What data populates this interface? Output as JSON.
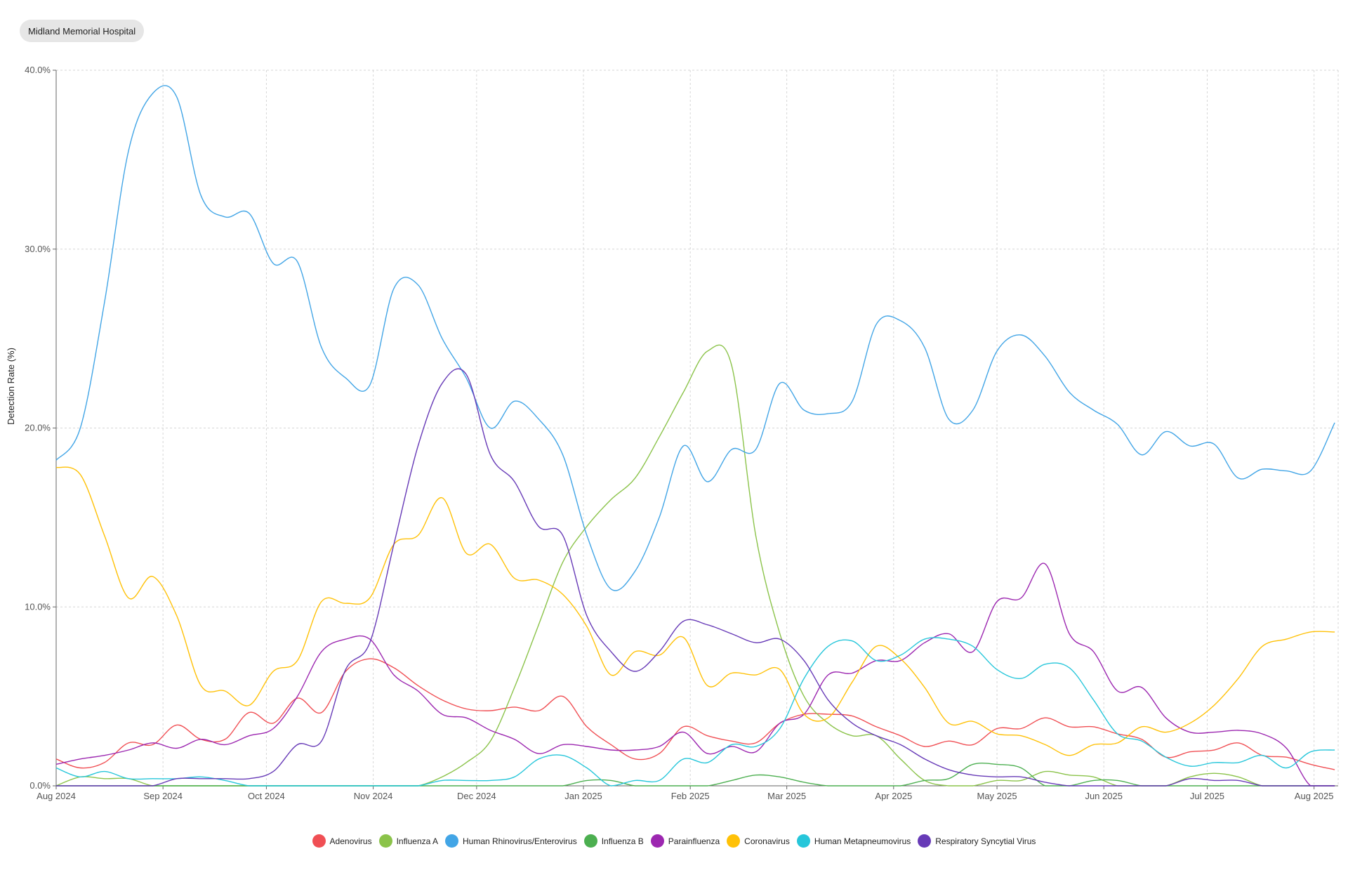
{
  "header": {
    "filter_label": "Midland Memorial Hospital"
  },
  "chart_data": {
    "type": "line",
    "ylabel": "Detection Rate (%)",
    "xlabel": "",
    "ylim": [
      0,
      40
    ],
    "yticks": [
      "0.0%",
      "10.0%",
      "20.0%",
      "30.0%",
      "40.0%"
    ],
    "xticks": [
      {
        "date": "2024-08-01",
        "label": "Aug 2024"
      },
      {
        "date": "2024-09-01",
        "label": "Sep 2024"
      },
      {
        "date": "2024-10-01",
        "label": "Oct 2024"
      },
      {
        "date": "2024-11-01",
        "label": "Nov 2024"
      },
      {
        "date": "2024-12-01",
        "label": "Dec 2024"
      },
      {
        "date": "2025-01-01",
        "label": "Jan 2025"
      },
      {
        "date": "2025-02-01",
        "label": "Feb 2025"
      },
      {
        "date": "2025-03-01",
        "label": "Mar 2025"
      },
      {
        "date": "2025-04-01",
        "label": "Apr 2025"
      },
      {
        "date": "2025-05-01",
        "label": "May 2025"
      },
      {
        "date": "2025-06-01",
        "label": "Jun 2025"
      },
      {
        "date": "2025-07-01",
        "label": "Jul 2025"
      },
      {
        "date": "2025-08-01",
        "label": "Aug 2025"
      }
    ],
    "xrange": [
      "2024-08-01",
      "2025-08-08"
    ],
    "grid": true,
    "legend_position": "bottom",
    "x": [
      "2024-08-01",
      "2024-08-08",
      "2024-08-15",
      "2024-08-22",
      "2024-08-29",
      "2024-09-05",
      "2024-09-12",
      "2024-09-19",
      "2024-09-26",
      "2024-10-03",
      "2024-10-10",
      "2024-10-17",
      "2024-10-24",
      "2024-10-31",
      "2024-11-07",
      "2024-11-14",
      "2024-11-21",
      "2024-11-28",
      "2024-12-05",
      "2024-12-12",
      "2024-12-19",
      "2024-12-26",
      "2025-01-02",
      "2025-01-09",
      "2025-01-16",
      "2025-01-23",
      "2025-01-30",
      "2025-02-06",
      "2025-02-13",
      "2025-02-20",
      "2025-02-27",
      "2025-03-06",
      "2025-03-13",
      "2025-03-20",
      "2025-03-27",
      "2025-04-03",
      "2025-04-10",
      "2025-04-17",
      "2025-04-24",
      "2025-05-01",
      "2025-05-08",
      "2025-05-15",
      "2025-05-22",
      "2025-05-29",
      "2025-06-05",
      "2025-06-12",
      "2025-06-19",
      "2025-06-26",
      "2025-07-03",
      "2025-07-10",
      "2025-07-17",
      "2025-07-24",
      "2025-07-31",
      "2025-08-07"
    ],
    "series": [
      {
        "name": "Adenovirus",
        "color": "#f04f54",
        "values": [
          1.5,
          1.0,
          1.3,
          2.4,
          2.3,
          3.4,
          2.6,
          2.6,
          4.1,
          3.5,
          4.9,
          4.1,
          6.4,
          7.1,
          6.6,
          5.6,
          4.8,
          4.3,
          4.2,
          4.4,
          4.2,
          5.0,
          3.3,
          2.3,
          1.5,
          1.8,
          3.3,
          2.8,
          2.5,
          2.4,
          3.5,
          4.0,
          4.0,
          3.9,
          3.3,
          2.8,
          2.2,
          2.5,
          2.3,
          3.2,
          3.2,
          3.8,
          3.3,
          3.3,
          2.9,
          2.6,
          1.6,
          1.9,
          2.0,
          2.4,
          1.7,
          1.6,
          1.2,
          0.9
        ]
      },
      {
        "name": "Influenza A",
        "color": "#8bc34a",
        "values": [
          0.0,
          0.5,
          0.4,
          0.4,
          0.0,
          0.0,
          0.0,
          0.0,
          0.0,
          0.0,
          0.0,
          0.0,
          0.0,
          0.0,
          0.0,
          0.0,
          0.5,
          1.3,
          2.5,
          5.5,
          9.0,
          12.5,
          14.5,
          16.0,
          17.2,
          19.5,
          22.0,
          24.3,
          23.5,
          14.0,
          8.5,
          5.0,
          3.5,
          2.8,
          2.8,
          1.5,
          0.3,
          0.0,
          0.0,
          0.3,
          0.3,
          0.8,
          0.6,
          0.5,
          0.0,
          0.0,
          0.0,
          0.5,
          0.7,
          0.5,
          0.0,
          0.0,
          0.0,
          0.0
        ]
      },
      {
        "name": "Human Rhinovirus/Enterovirus",
        "color": "#42a5e6",
        "values": [
          18.2,
          20.0,
          27.0,
          35.5,
          38.7,
          38.5,
          33.0,
          31.8,
          32.0,
          29.2,
          29.3,
          24.5,
          22.8,
          22.4,
          27.8,
          28.0,
          25.0,
          22.8,
          20.0,
          21.5,
          20.5,
          18.5,
          14.0,
          11.0,
          12.0,
          15.0,
          19.0,
          17.0,
          18.8,
          18.8,
          22.5,
          21.0,
          20.8,
          21.5,
          25.8,
          26.0,
          24.5,
          20.5,
          21.0,
          24.3,
          25.2,
          24.0,
          22.0,
          21.0,
          20.2,
          18.5,
          19.8,
          19.0,
          19.1,
          17.2,
          17.7,
          17.6,
          17.6,
          20.3
        ]
      },
      {
        "name": "Influenza B",
        "color": "#4caf50",
        "values": [
          0.0,
          0.0,
          0.0,
          0.0,
          0.0,
          0.0,
          0.0,
          0.0,
          0.0,
          0.0,
          0.0,
          0.0,
          0.0,
          0.0,
          0.0,
          0.0,
          0.0,
          0.0,
          0.0,
          0.0,
          0.0,
          0.0,
          0.3,
          0.3,
          0.0,
          0.0,
          0.0,
          0.0,
          0.3,
          0.6,
          0.5,
          0.2,
          0.0,
          0.0,
          0.0,
          0.0,
          0.3,
          0.4,
          1.2,
          1.2,
          1.0,
          0.0,
          0.0,
          0.3,
          0.3,
          0.0,
          0.0,
          0.0,
          0.0,
          0.0,
          0.0,
          0.0,
          0.0,
          0.0
        ]
      },
      {
        "name": "Parainfluenza",
        "color": "#9c27b0",
        "values": [
          1.2,
          1.5,
          1.7,
          2.0,
          2.4,
          2.1,
          2.6,
          2.3,
          2.8,
          3.2,
          5.0,
          7.5,
          8.2,
          8.2,
          6.2,
          5.3,
          4.0,
          3.8,
          3.1,
          2.6,
          1.8,
          2.3,
          2.2,
          2.0,
          2.0,
          2.2,
          3.0,
          1.8,
          2.2,
          1.9,
          3.5,
          4.0,
          6.2,
          6.3,
          7.0,
          7.0,
          8.0,
          8.5,
          7.5,
          10.3,
          10.5,
          12.4,
          8.5,
          7.5,
          5.3,
          5.5,
          3.8,
          3.0,
          3.0,
          3.1,
          2.9,
          2.1,
          0.0,
          0.0
        ]
      },
      {
        "name": "Coronavirus",
        "color": "#ffc107",
        "values": [
          17.8,
          17.4,
          14.0,
          10.5,
          11.7,
          9.5,
          5.6,
          5.3,
          4.5,
          6.4,
          7.0,
          10.3,
          10.2,
          10.5,
          13.5,
          14.0,
          16.1,
          13.0,
          13.5,
          11.6,
          11.5,
          10.7,
          8.9,
          6.2,
          7.5,
          7.3,
          8.3,
          5.6,
          6.3,
          6.2,
          6.5,
          4.0,
          3.8,
          5.8,
          7.8,
          7.1,
          5.5,
          3.5,
          3.6,
          2.9,
          2.8,
          2.3,
          1.7,
          2.3,
          2.4,
          3.3,
          3.0,
          3.5,
          4.5,
          6.0,
          7.8,
          8.2,
          8.6,
          8.6
        ]
      },
      {
        "name": "Human Metapneumovirus",
        "color": "#26c6da",
        "values": [
          1.0,
          0.5,
          0.8,
          0.4,
          0.4,
          0.4,
          0.5,
          0.3,
          0.0,
          0.0,
          0.0,
          0.0,
          0.0,
          0.0,
          0.0,
          0.0,
          0.3,
          0.3,
          0.3,
          0.5,
          1.5,
          1.7,
          1.0,
          0.0,
          0.3,
          0.3,
          1.5,
          1.3,
          2.3,
          2.2,
          3.2,
          6.0,
          7.8,
          8.1,
          7.0,
          7.3,
          8.2,
          8.2,
          7.8,
          6.5,
          6.0,
          6.8,
          6.6,
          4.8,
          2.9,
          2.5,
          1.6,
          1.1,
          1.3,
          1.3,
          1.7,
          1.0,
          1.9,
          2.0
        ]
      },
      {
        "name": "Respiratory Syncytial Virus",
        "color": "#673ab7",
        "values": [
          0.0,
          0.0,
          0.0,
          0.0,
          0.0,
          0.4,
          0.4,
          0.4,
          0.4,
          0.8,
          2.3,
          2.5,
          6.5,
          8.0,
          13.5,
          19.0,
          22.5,
          23.0,
          18.5,
          17.0,
          14.5,
          14.0,
          9.5,
          7.5,
          6.4,
          7.5,
          9.2,
          9.0,
          8.5,
          8.0,
          8.2,
          7.0,
          4.8,
          3.5,
          2.8,
          2.3,
          1.5,
          0.9,
          0.6,
          0.5,
          0.5,
          0.2,
          0.0,
          0.0,
          0.0,
          0.0,
          0.0,
          0.4,
          0.3,
          0.3,
          0.0,
          0.0,
          0.0,
          0.0
        ]
      }
    ]
  }
}
